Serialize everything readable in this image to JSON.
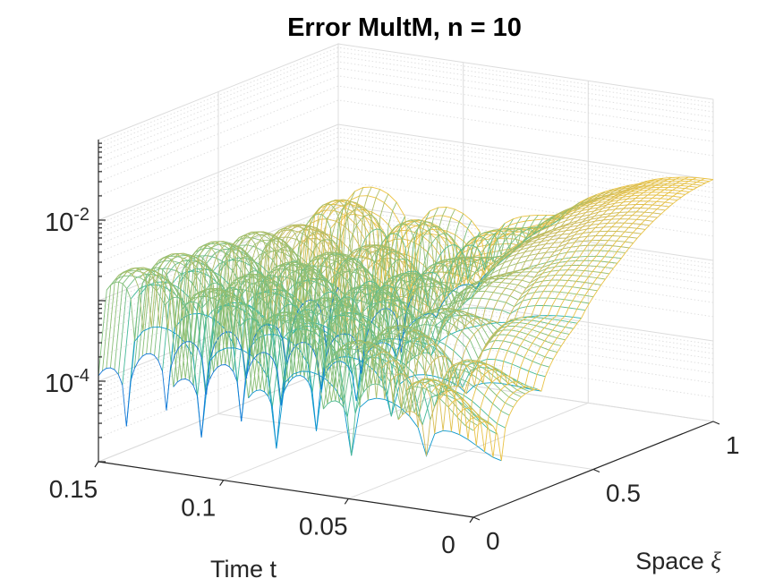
{
  "chart_data": {
    "type": "surface-mesh",
    "title": "Error MultM, n = 10",
    "xlabel": "Time t",
    "ylabel": "Space ξ",
    "zscale": "log",
    "x_ticks": [
      "0.15",
      "0.1",
      "0.05",
      "0"
    ],
    "x_tick_values": [
      0.15,
      0.1,
      0.05,
      0
    ],
    "y_ticks": [
      "0",
      "0.5",
      "1"
    ],
    "y_tick_values": [
      0,
      0.5,
      1
    ],
    "z_ticks": [
      {
        "base": "10",
        "exp": "-2",
        "value": 0.01
      },
      {
        "base": "10",
        "exp": "-4",
        "value": 0.0001
      }
    ],
    "xlim": [
      0,
      0.15
    ],
    "ylim": [
      0,
      1
    ],
    "zlim": [
      1e-05,
      0.1
    ],
    "colormap": [
      "#352a87",
      "#0f5cdd",
      "#1481d6",
      "#06a4ca",
      "#2eb7a4",
      "#87bf77",
      "#d1bb59",
      "#fec832",
      "#f9fb0e"
    ],
    "z_peak": 0.01,
    "grid": true,
    "mesh": {
      "time_lines": 45,
      "space_lines": 60
    }
  }
}
